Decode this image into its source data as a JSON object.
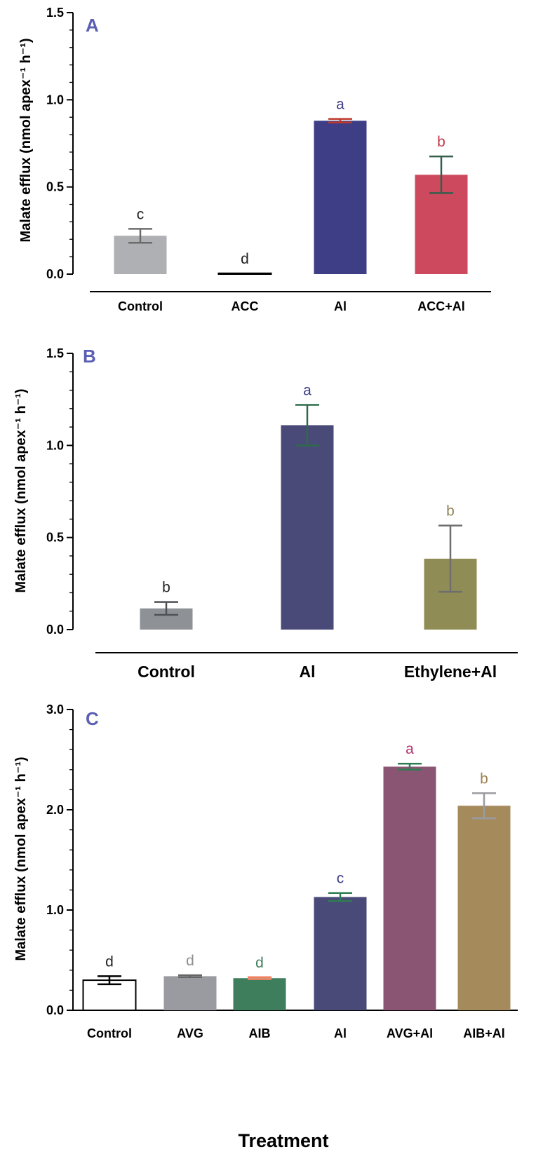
{
  "colors": {
    "panel_letter": "#5b5fb3",
    "axis": "#000000"
  },
  "figure": {
    "xlabel": "Treatment"
  },
  "chart_data": [
    {
      "type": "bar",
      "panel": "A",
      "ylabel": "Malate efflux (nmol apex⁻¹ h⁻¹)",
      "ylim": [
        0,
        1.5
      ],
      "yticks": [
        "0.0",
        "0.5",
        "1.0",
        "1.5"
      ],
      "categories": [
        "Control",
        "ACC",
        "Al",
        "ACC+Al"
      ],
      "values": [
        0.22,
        0.005,
        0.88,
        0.57
      ],
      "errors": [
        0.04,
        0.0,
        0.01,
        0.105
      ],
      "letters": [
        "c",
        "d",
        "a",
        "b"
      ],
      "bar_colors": [
        "#aeb0b3",
        "#ffffff",
        "#3e3e87",
        "#cd4a5e"
      ],
      "bar_outlines": [
        "none",
        "#000000",
        "none",
        "none"
      ],
      "error_colors": [
        "#6b6b6b",
        "#000000",
        "#c0392b",
        "#355e4d"
      ],
      "letter_colors": [
        "#222222",
        "#222222",
        "#3e3e87",
        "#c0394d"
      ]
    },
    {
      "type": "bar",
      "panel": "B",
      "ylabel": "Malate efflux (nmol apex⁻¹ h⁻¹)",
      "ylim": [
        0,
        1.5
      ],
      "yticks": [
        "0.0",
        "0.5",
        "1.0",
        "1.5"
      ],
      "categories": [
        "Control",
        "Al",
        "Ethylene+Al"
      ],
      "values": [
        0.115,
        1.11,
        0.385
      ],
      "errors": [
        0.035,
        0.11,
        0.18
      ],
      "letters": [
        "b",
        "a",
        "b"
      ],
      "bar_colors": [
        "#8e9196",
        "#4a4a78",
        "#8f8d55"
      ],
      "bar_outlines": [
        "none",
        "none",
        "none"
      ],
      "error_colors": [
        "#4f5356",
        "#2e6b4a",
        "#6e6e6e"
      ],
      "letter_colors": [
        "#222222",
        "#3e3e87",
        "#8f8455"
      ]
    },
    {
      "type": "bar",
      "panel": "C",
      "ylabel": "Malate efflux (nmol apex⁻¹ h⁻¹)",
      "ylim": [
        0,
        3.0
      ],
      "yticks": [
        "0.0",
        "1.0",
        "2.0",
        "3.0"
      ],
      "categories": [
        "Control",
        "AVG",
        "AIB",
        "Al",
        "AVG+Al",
        "AIB+Al"
      ],
      "values": [
        0.3,
        0.34,
        0.32,
        1.13,
        2.43,
        2.04
      ],
      "errors": [
        0.04,
        0.01,
        0.01,
        0.04,
        0.03,
        0.125
      ],
      "letters": [
        "d",
        "d",
        "d",
        "c",
        "a",
        "b"
      ],
      "bar_colors": [
        "#ffffff",
        "#9a9ba0",
        "#3f7e5c",
        "#4a4a78",
        "#8a5572",
        "#a58a5c"
      ],
      "bar_outlines": [
        "#000000",
        "none",
        "none",
        "none",
        "none",
        "none"
      ],
      "error_colors": [
        "#000000",
        "#666666",
        "#f08060",
        "#2e7d52",
        "#2e7d52",
        "#9a9ba0"
      ],
      "letter_colors": [
        "#222222",
        "#8e8e8e",
        "#3f7e5c",
        "#3e3e87",
        "#b0306a",
        "#a0804f"
      ]
    }
  ]
}
